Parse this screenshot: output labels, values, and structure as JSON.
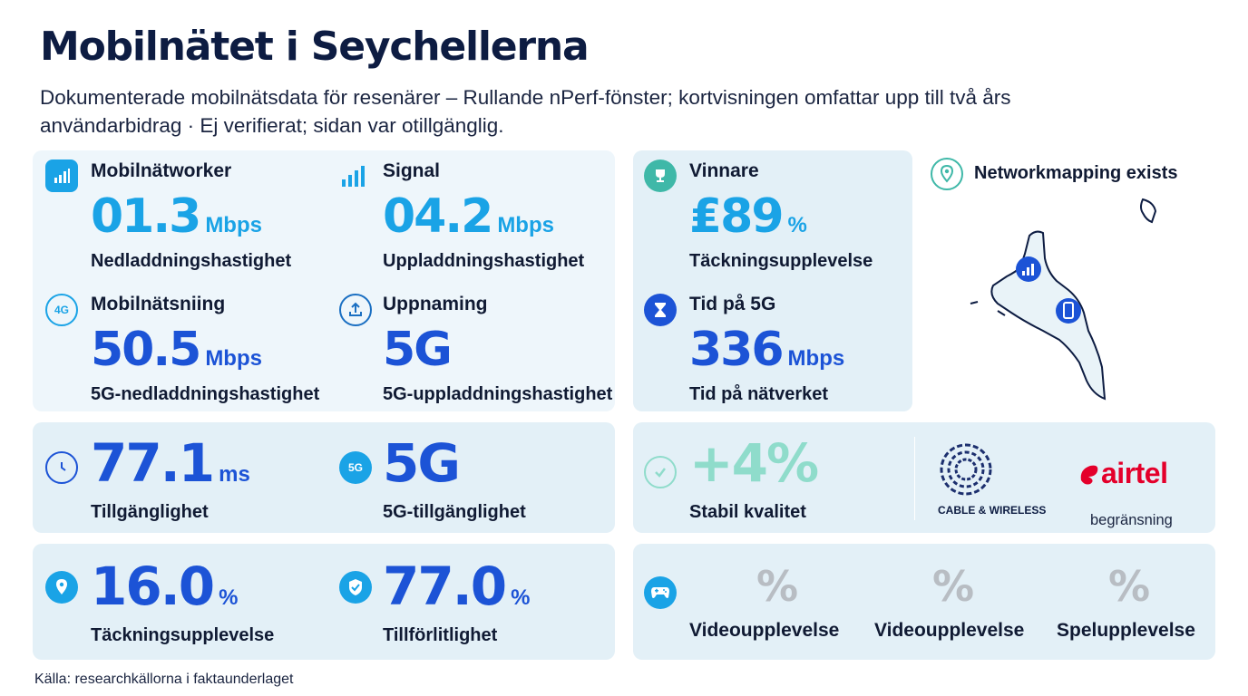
{
  "title": "Mobilnätet i Seychellerna",
  "subtitle": "Dokumenterade mobilnätsdata för resenärer – Rullande nPerf-fönster; kortvisningen omfattar upp till två års användarbidrag · Ej verifierat; sidan var otillgänglig.",
  "top": {
    "stat1": {
      "label": "Mobilnätworker",
      "value": "01.3",
      "unit": "Mbps",
      "sub": "Nedladdningshastighet",
      "icon": "signal-bars-icon"
    },
    "stat2": {
      "label": "Signal",
      "value": "04.2",
      "unit": "Mbps",
      "sub": "Uppladdningshastighet",
      "icon": "signal-bars-icon"
    },
    "stat3": {
      "label": "Mobilnätsniing",
      "value": "50.5",
      "unit": "Mbps",
      "sub": "5G-nedladdningshastighet",
      "icon_text": "4G"
    },
    "stat4": {
      "label": "Uppnaming",
      "value": "5G",
      "unit": "",
      "sub": "5G-uppladdningshastighet",
      "icon": "upload-icon"
    },
    "stat5": {
      "label": "Vinnare",
      "value": "₤89",
      "unit": "%",
      "sub": "Täckningsupplevelse",
      "icon": "trophy-icon"
    },
    "stat6": {
      "label": "Tid på 5G",
      "value": "336",
      "unit": "Mbps",
      "sub": "Tid på nätverket",
      "icon": "hourglass-icon"
    }
  },
  "map": {
    "label": "Networkmapping exists",
    "icon": "map-pin-icon"
  },
  "mid": {
    "latency": {
      "value": "77.1",
      "unit": "ms",
      "sub": "Tillgänglighet",
      "icon": "clock-icon"
    },
    "avail5g": {
      "value": "5G",
      "unit": "",
      "sub": "5G-tillgänglighet",
      "icon_text": "5G"
    },
    "quality": {
      "value": "+4%",
      "sub": "Stabil kvalitet",
      "icon": "check-circle-icon"
    },
    "operators": {
      "op1": "CABLE & WIRELESS",
      "op2": "airtel",
      "op2_note": "begränsning"
    }
  },
  "bottom": {
    "coverage": {
      "value": "16.0",
      "unit": "%",
      "sub": "Täckningsupplevelse",
      "icon": "location-pin-icon"
    },
    "reliability": {
      "value": "77.0",
      "unit": "%",
      "sub": "Tillförlitlighet",
      "icon": "shield-check-icon"
    },
    "experience": {
      "icon": "gamepad-icon",
      "items": [
        {
          "value": "%",
          "label": "Videoupplevelse"
        },
        {
          "value": "%",
          "label": "Videoupplevelse"
        },
        {
          "value": "%",
          "label": "Spelupplevelse"
        }
      ]
    }
  },
  "source": "Källa: researchkällorna i faktaunderlaget",
  "colors": {
    "cyan": "#1aa3e6",
    "blue": "#1c53d6",
    "mint": "#8fdccb",
    "panel": "#eef6fb"
  }
}
